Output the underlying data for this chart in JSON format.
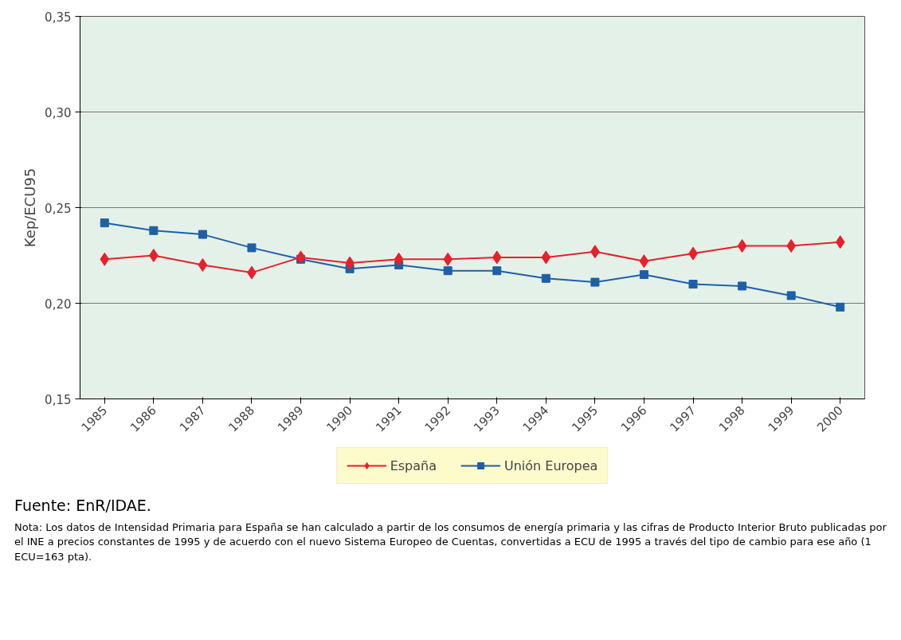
{
  "chart_data": {
    "type": "line",
    "ylabel": "Kep/ECU95",
    "categories": [
      "1985",
      "1986",
      "1987",
      "1988",
      "1989",
      "1990",
      "1991",
      "1992",
      "1993",
      "1994",
      "1995",
      "1996",
      "1997",
      "1998",
      "1999",
      "2000"
    ],
    "series": [
      {
        "name": "España",
        "color": "#e8202a",
        "marker": "diamond",
        "values": [
          0.223,
          0.225,
          0.22,
          0.216,
          0.224,
          0.221,
          0.223,
          0.223,
          0.224,
          0.224,
          0.227,
          0.222,
          0.226,
          0.23,
          0.23,
          0.232
        ]
      },
      {
        "name": "Unión Europea",
        "color": "#1f5fa8",
        "marker": "square",
        "values": [
          0.242,
          0.238,
          0.236,
          0.229,
          0.223,
          0.218,
          0.22,
          0.217,
          0.217,
          0.213,
          0.211,
          0.215,
          0.21,
          0.209,
          0.204,
          0.198
        ]
      }
    ],
    "ylim": [
      0.15,
      0.35
    ],
    "yticks": [
      {
        "value": 0.15,
        "label": "0,15"
      },
      {
        "value": 0.2,
        "label": "0,20"
      },
      {
        "value": 0.25,
        "label": "0,25"
      },
      {
        "value": 0.3,
        "label": "0,30"
      },
      {
        "value": 0.35,
        "label": "0,35"
      }
    ],
    "grid": "y",
    "legend": "bottom",
    "line_style": "solid",
    "annotations": [
      "Fuente: EnR/IDAE.",
      "Nota: Los datos de Intensidad Primaria para España se han calculado a partir de los consumos de energía primaria y las cifras de Producto Interior Bruto publicadas por el INE a precios constantes de 1995 y de acuerdo con el nuevo Sistema Europeo de Cuentas, convertidas a ECU de 1995 a través del tipo de cambio para ese año (1 ECU=163 pta)."
    ]
  }
}
